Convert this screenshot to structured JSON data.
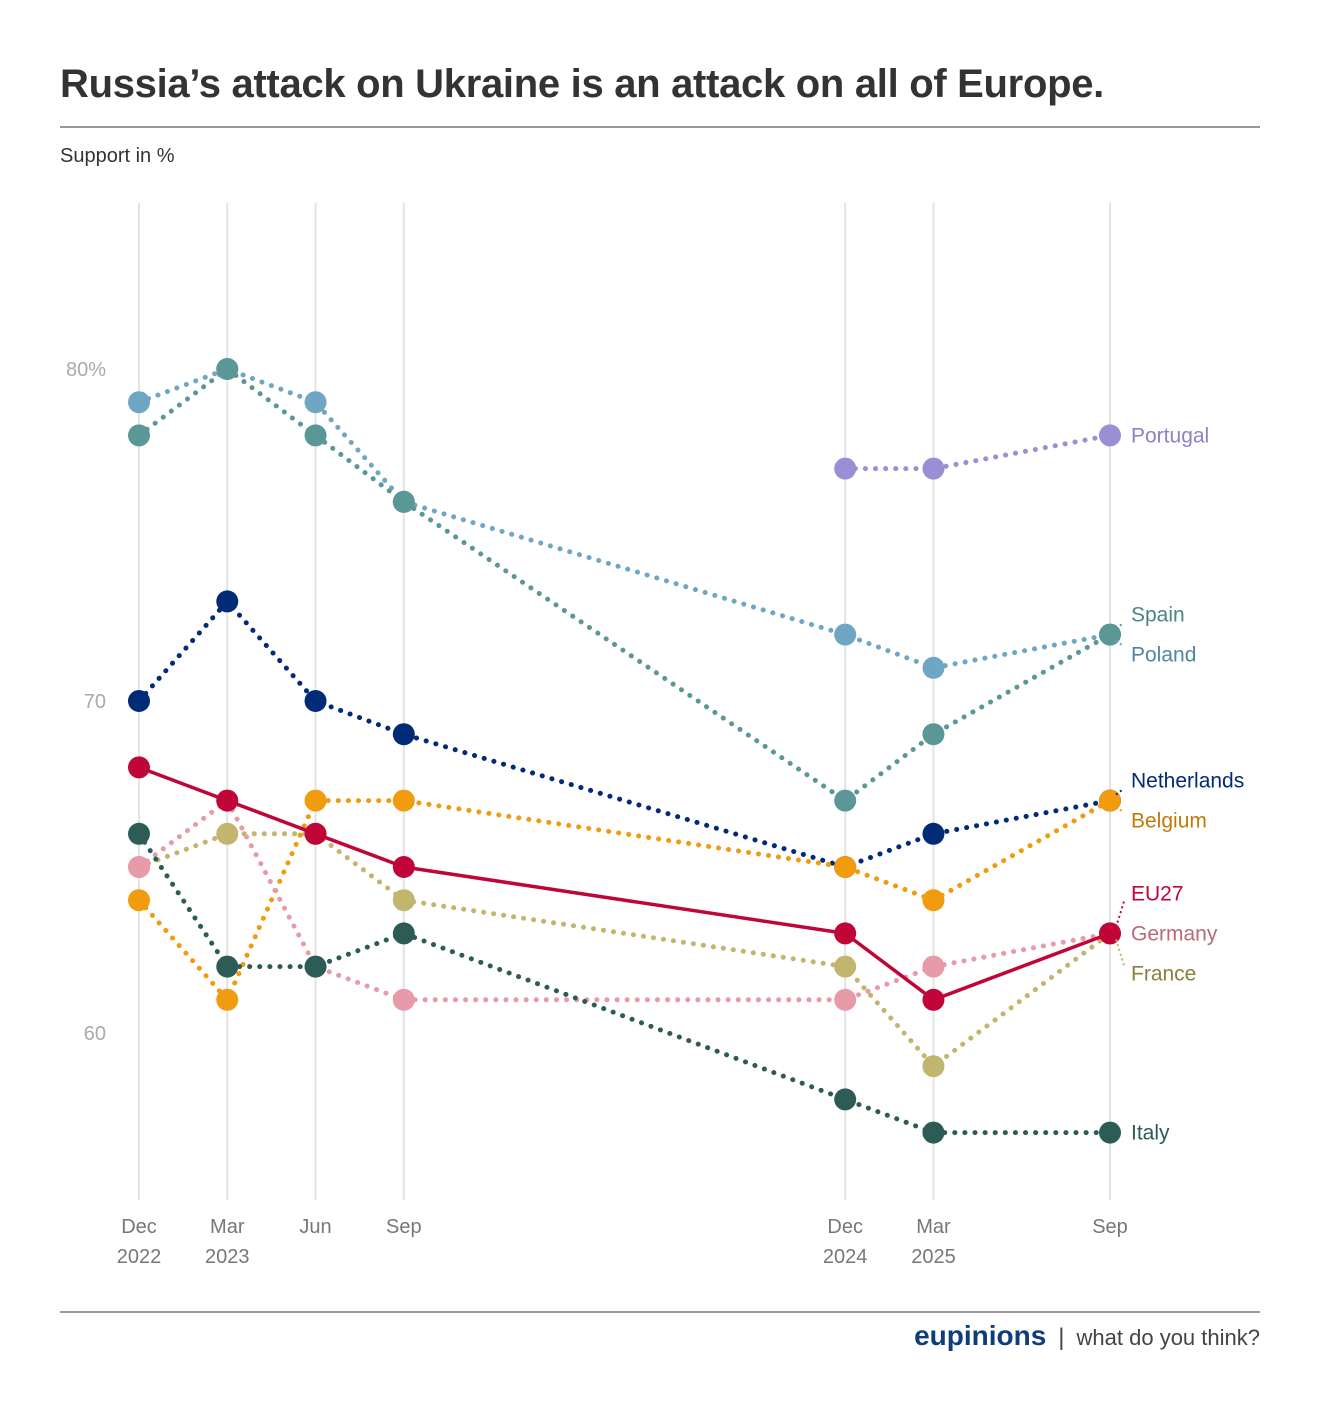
{
  "header": {
    "title": "Russia’s attack on Ukraine is an attack on all of Europe.",
    "subtitle": "Support in %"
  },
  "footer": {
    "brand": "eupinions",
    "separator": "|",
    "tagline": "what do you think?"
  },
  "chart_data": {
    "type": "line",
    "title": "Russia’s attack on Ukraine is an attack on all of Europe.",
    "subtitle": "Support in %",
    "xlabel": "",
    "ylabel": "Support in %",
    "ylim": [
      55,
      85
    ],
    "grid": "vertical",
    "legend": "direct-labels-right",
    "x": [
      "2022-12",
      "2023-03",
      "2023-06",
      "2023-09",
      "2024-12",
      "2025-03",
      "2025-09"
    ],
    "x_month_index": [
      0,
      3,
      6,
      9,
      24,
      27,
      33
    ],
    "x_tick_labels": [
      [
        "Dec",
        "2022"
      ],
      [
        "Mar",
        "2023"
      ],
      [
        "Jun",
        ""
      ],
      [
        "Sep",
        ""
      ],
      [
        "Dec",
        "2024"
      ],
      [
        "Mar",
        "2025"
      ],
      [
        "Sep",
        ""
      ]
    ],
    "y_ticks": [
      {
        "value": 80,
        "label": "80%"
      },
      {
        "value": 70,
        "label": "70"
      },
      {
        "value": 60,
        "label": "60"
      }
    ],
    "series": [
      {
        "name": "Portugal",
        "color": "#9a8fd4",
        "label_color": "#8c82c6",
        "dotted": true,
        "values": [
          null,
          null,
          null,
          null,
          77,
          77,
          78
        ]
      },
      {
        "name": "Poland",
        "color": "#6fa6c4",
        "label_color": "#4f87a3",
        "dotted": true,
        "values": [
          79,
          80,
          79,
          76,
          72,
          71,
          72
        ]
      },
      {
        "name": "Spain",
        "color": "#5b9796",
        "label_color": "#4a8584",
        "dotted": true,
        "values": [
          78,
          80,
          78,
          76,
          67,
          69,
          72
        ]
      },
      {
        "name": "Netherlands",
        "color": "#012a77",
        "label_color": "#012a77",
        "dotted": true,
        "values": [
          70,
          73,
          70,
          69,
          65,
          66,
          67
        ]
      },
      {
        "name": "Belgium",
        "color": "#f09c0e",
        "label_color": "#c07a08",
        "dotted": true,
        "values": [
          64,
          61,
          67,
          67,
          65,
          64,
          67
        ]
      },
      {
        "name": "France",
        "color": "#c2b56d",
        "label_color": "#8a7f3c",
        "dotted": true,
        "values": [
          65,
          66,
          66,
          64,
          62,
          59,
          63
        ]
      },
      {
        "name": "Germany",
        "color": "#e79aa7",
        "label_color": "#b86a7a",
        "dotted": true,
        "values": [
          65,
          67,
          62,
          61,
          61,
          62,
          63
        ]
      },
      {
        "name": "Italy",
        "color": "#2d5c57",
        "label_color": "#2d5c57",
        "dotted": true,
        "values": [
          66,
          62,
          62,
          63,
          58,
          57,
          57
        ]
      },
      {
        "name": "EU27",
        "color": "#c00539",
        "label_color": "#c00539",
        "dotted": false,
        "values": [
          68,
          67,
          66,
          65,
          63,
          61,
          63
        ]
      }
    ],
    "end_labels": [
      {
        "name": "Portugal",
        "offset": 0
      },
      {
        "name": "Spain",
        "offset": -20
      },
      {
        "name": "Poland",
        "offset": 20
      },
      {
        "name": "Netherlands",
        "offset": -20
      },
      {
        "name": "Belgium",
        "offset": 20
      },
      {
        "name": "EU27",
        "offset": -40
      },
      {
        "name": "Germany",
        "offset": 0
      },
      {
        "name": "France",
        "offset": 40
      },
      {
        "name": "Italy",
        "offset": 0
      }
    ]
  }
}
